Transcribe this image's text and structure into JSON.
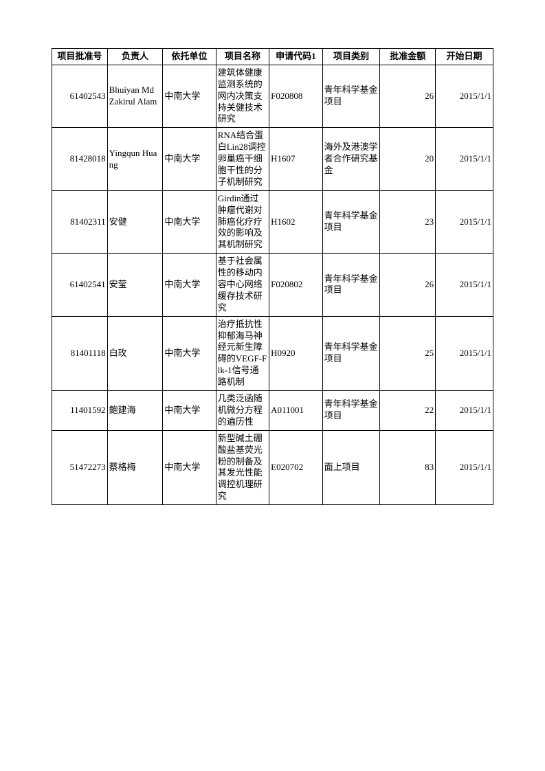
{
  "table": {
    "columns": [
      "项目批准号",
      "负责人",
      "依托单位",
      "项目名称",
      "申请代码1",
      "项目类别",
      "批准金额",
      "开始日期"
    ],
    "column_widths_pct": [
      12.5,
      12.5,
      12,
      12,
      12,
      13,
      12.5,
      13
    ],
    "column_align": [
      "right",
      "left",
      "left",
      "left",
      "left",
      "left",
      "right",
      "right"
    ],
    "header_align": "center",
    "border_color": "#000000",
    "background_color": "#ffffff",
    "font_size_pt": 10,
    "header_font_weight": "bold",
    "rows": [
      [
        "61402543",
        "Bhuiyan Md Zakirul Alam",
        "中南大学",
        "建筑体健康监测系统的网内决策支持关健技术研究",
        "F020808",
        "青年科学基金项目",
        "26",
        "2015/1/1"
      ],
      [
        "81428018",
        "Yingqun Huang",
        "中南大学",
        "RNA结合蛋白Lin28调控卵巢癌干细胞干性的分子机制研究",
        "H1607",
        "海外及港澳学者合作研究基金",
        "20",
        "2015/1/1"
      ],
      [
        "81402311",
        "安健",
        "中南大学",
        "Girdin通过肿瘤代谢对肺癌化疗疗效的影响及其机制研究",
        "H1602",
        "青年科学基金项目",
        "23",
        "2015/1/1"
      ],
      [
        "61402541",
        "安莹",
        "中南大学",
        "基于社会属性的移动内容中心网络缓存技术研究",
        "F020802",
        "青年科学基金项目",
        "26",
        "2015/1/1"
      ],
      [
        "81401118",
        "白玫",
        "中南大学",
        "治疗抵抗性抑郁海马神经元新生障碍的VEGF-Flk-1信号通路机制",
        "H0920",
        "青年科学基金项目",
        "25",
        "2015/1/1"
      ],
      [
        "11401592",
        "鲍建海",
        "中南大学",
        "几类泛函随机微分方程的遍历性",
        "A011001",
        "青年科学基金项目",
        "22",
        "2015/1/1"
      ],
      [
        "51472273",
        "蔡格梅",
        "中南大学",
        "新型碱土硼酸盐基荧光粉的制备及其发光性能调控机理研究",
        "E020702",
        "面上项目",
        "83",
        "2015/1/1"
      ]
    ]
  }
}
